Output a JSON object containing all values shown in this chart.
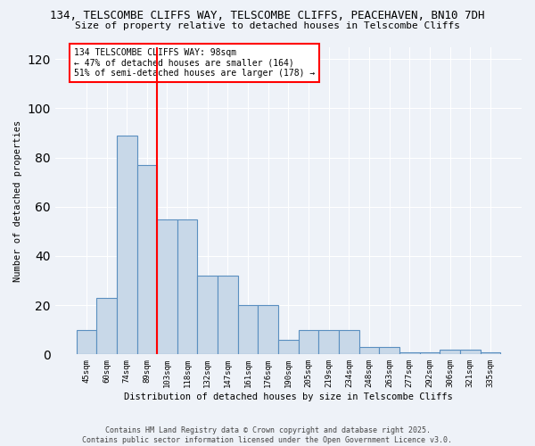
{
  "title": "134, TELSCOMBE CLIFFS WAY, TELSCOMBE CLIFFS, PEACEHAVEN, BN10 7DH",
  "subtitle": "Size of property relative to detached houses in Telscombe Cliffs",
  "xlabel": "Distribution of detached houses by size in Telscombe Cliffs",
  "ylabel": "Number of detached properties",
  "categories": [
    "45sqm",
    "60sqm",
    "74sqm",
    "89sqm",
    "103sqm",
    "118sqm",
    "132sqm",
    "147sqm",
    "161sqm",
    "176sqm",
    "190sqm",
    "205sqm",
    "219sqm",
    "234sqm",
    "248sqm",
    "263sqm",
    "277sqm",
    "292sqm",
    "306sqm",
    "321sqm",
    "335sqm"
  ],
  "values": [
    10,
    23,
    89,
    77,
    55,
    55,
    32,
    32,
    20,
    20,
    6,
    10,
    10,
    10,
    3,
    3,
    1,
    1,
    2,
    2,
    1
  ],
  "bar_color": "#c8d8e8",
  "bar_edge_color": "#5a8fc0",
  "vline_x": 3.5,
  "vline_color": "red",
  "annotation_text": "134 TELSCOMBE CLIFFS WAY: 98sqm\n← 47% of detached houses are smaller (164)\n51% of semi-detached houses are larger (178) →",
  "ylim": [
    0,
    125
  ],
  "yticks": [
    0,
    20,
    40,
    60,
    80,
    100,
    120
  ],
  "background_color": "#eef2f8",
  "footer1": "Contains HM Land Registry data © Crown copyright and database right 2025.",
  "footer2": "Contains public sector information licensed under the Open Government Licence v3.0."
}
